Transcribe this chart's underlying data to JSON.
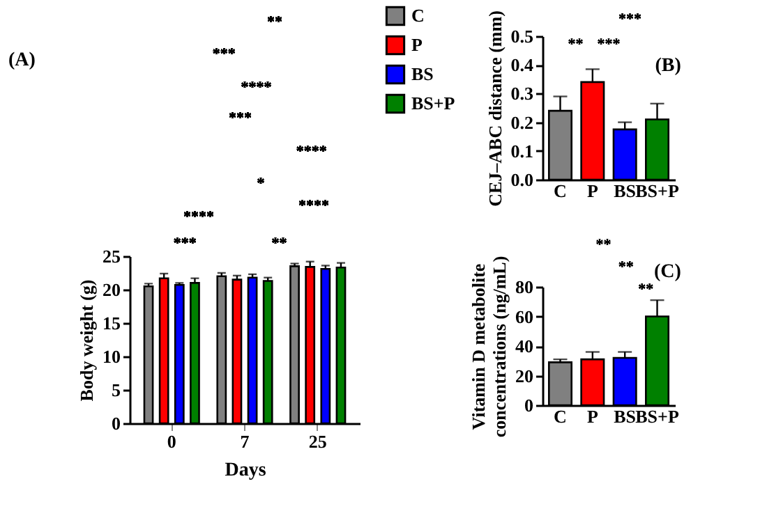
{
  "chart_data": [
    {
      "type": "bar",
      "title": "(A)",
      "xlabel": "Days",
      "ylabel": "Body weight (g)",
      "categories": [
        "0",
        "7",
        "25"
      ],
      "series": [
        {
          "name": "C",
          "color": "#808080",
          "values": [
            20.5,
            22.0,
            23.5
          ],
          "errors": [
            [
              20.5,
              20.9
            ],
            [
              22.0,
              22.5
            ],
            [
              23.5,
              23.9
            ]
          ]
        },
        {
          "name": "P",
          "color": "#ff0000",
          "values": [
            21.7,
            21.5,
            23.4
          ],
          "errors": [
            [
              21.7,
              22.4
            ],
            [
              21.5,
              22.1
            ],
            [
              23.4,
              24.2
            ]
          ]
        },
        {
          "name": "BS",
          "color": "#0000ff",
          "values": [
            20.7,
            21.8,
            23.1
          ],
          "errors": [
            [
              20.7,
              21.0
            ],
            [
              21.8,
              22.3
            ],
            [
              23.1,
              23.6
            ]
          ]
        },
        {
          "name": "BS+P",
          "color": "#008000",
          "values": [
            21.0,
            21.3,
            23.3
          ],
          "errors": [
            [
              21.0,
              21.7
            ],
            [
              21.3,
              21.8
            ],
            [
              23.3,
              24.0
            ]
          ]
        }
      ],
      "ylim": [
        0,
        25
      ],
      "yticks": [
        0,
        5,
        10,
        15,
        20,
        25
      ],
      "grid": false,
      "legend": "right",
      "annotations": [
        "**",
        "***",
        "****",
        "***",
        "****",
        "*",
        "****",
        "****",
        "***",
        "**"
      ]
    },
    {
      "type": "bar",
      "title": "(B)",
      "ylabel": "CEJ–ABC distance (mm)",
      "categories": [
        "C",
        "P",
        "BS",
        "BS+P"
      ],
      "values": [
        0.24,
        0.34,
        0.175,
        0.21
      ],
      "colors": [
        "#808080",
        "#ff0000",
        "#0000ff",
        "#008000"
      ],
      "errors": [
        [
          0.24,
          0.29
        ],
        [
          0.34,
          0.385
        ],
        [
          0.175,
          0.2
        ],
        [
          0.21,
          0.265
        ]
      ],
      "ylim": [
        0,
        0.5
      ],
      "yticks": [
        {
          "value": 0,
          "label": "0.0"
        },
        {
          "value": 0.1,
          "label": "0.1"
        },
        {
          "value": 0.2,
          "label": "0.2"
        },
        {
          "value": 0.3,
          "label": "0.3"
        },
        {
          "value": 0.4,
          "label": "0.4"
        },
        {
          "value": 0.5,
          "label": "0.5"
        }
      ],
      "grid": false,
      "annotations": [
        "**",
        "***",
        "***"
      ]
    },
    {
      "type": "bar",
      "title": "(C)",
      "ylabel": "Vitamin D metabolite concentrations (ng/mL)",
      "categories": [
        "C",
        "P",
        "BS",
        "BS+P"
      ],
      "values": [
        29,
        31,
        32,
        60
      ],
      "colors": [
        "#808080",
        "#ff0000",
        "#0000ff",
        "#008000"
      ],
      "errors": [
        [
          29,
          31
        ],
        [
          31,
          36
        ],
        [
          32,
          36
        ],
        [
          60,
          71
        ]
      ],
      "ylim": [
        0,
        80
      ],
      "yticks": [
        0,
        20,
        40,
        60,
        80
      ],
      "grid": false,
      "annotations": [
        "**",
        "**",
        "**"
      ]
    }
  ]
}
